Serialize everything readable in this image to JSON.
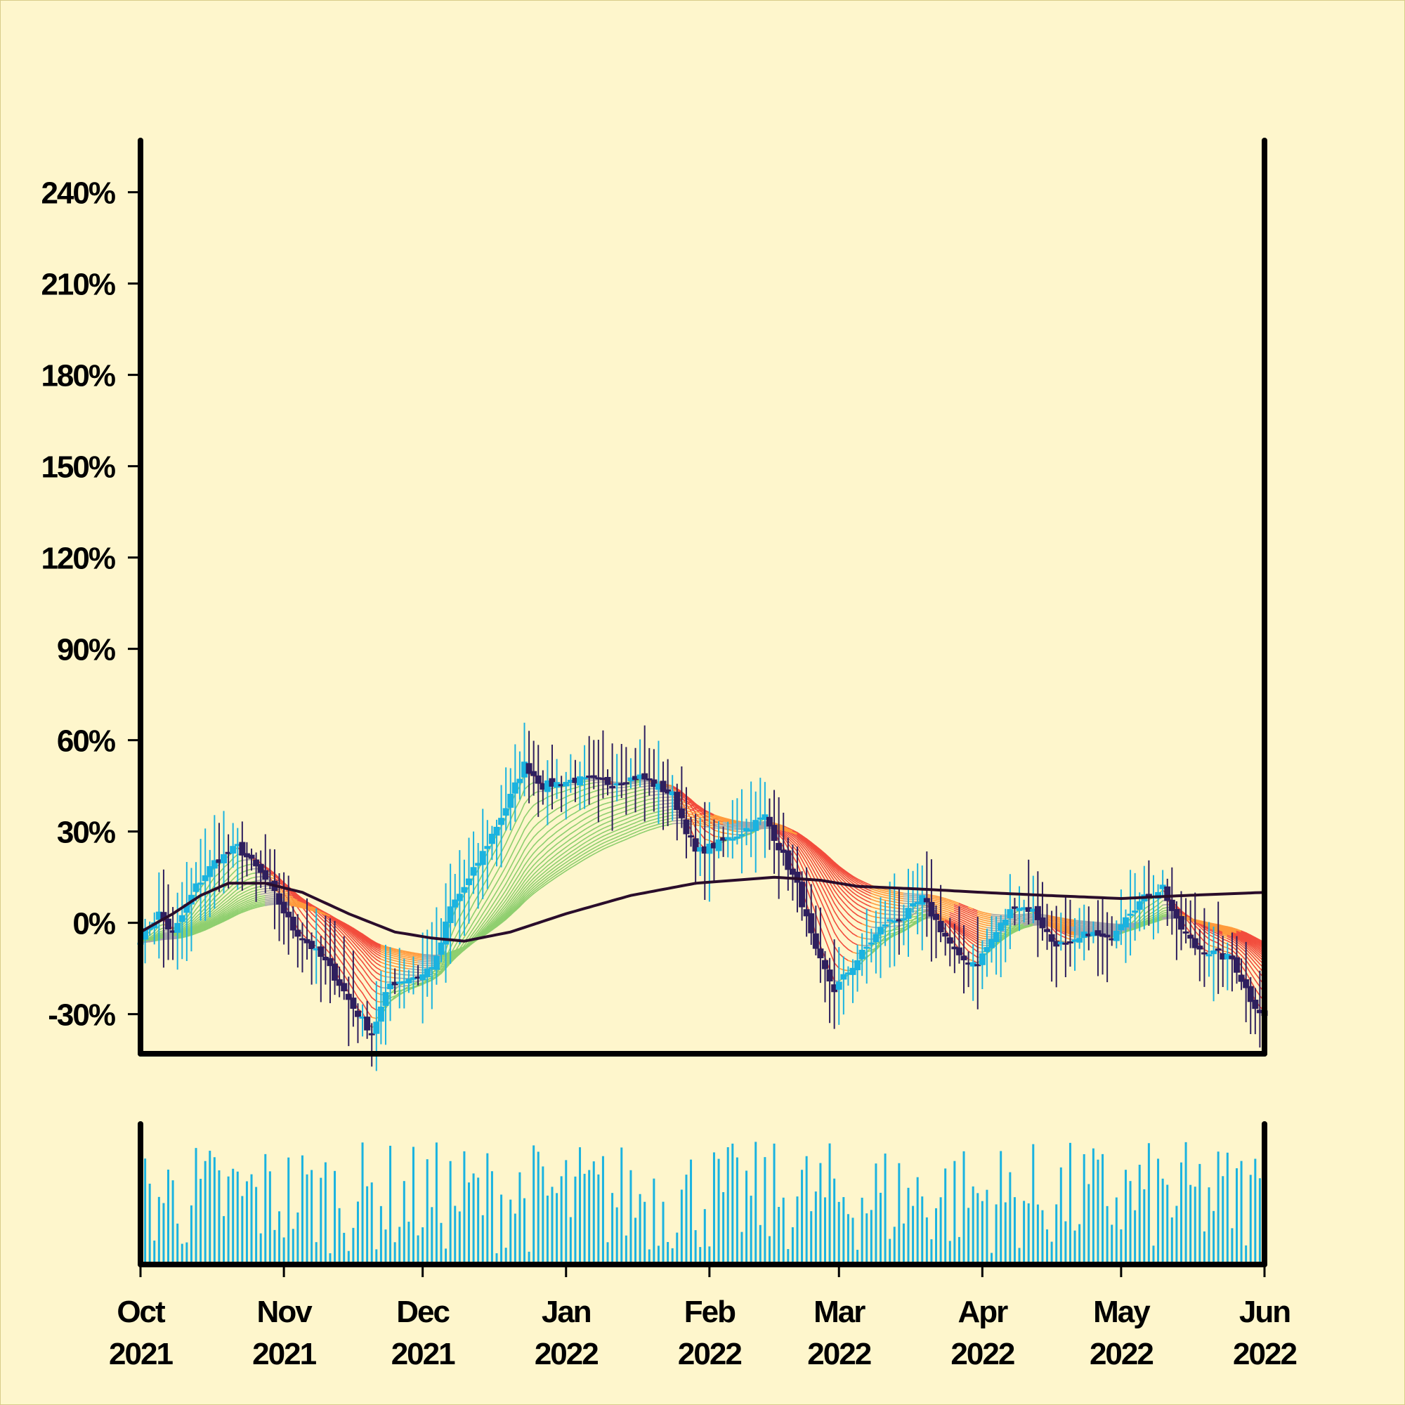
{
  "chart_data": {
    "type": "candlestick",
    "y_unit": "percent change",
    "y_axis": {
      "ticks": [
        -30,
        0,
        30,
        60,
        90,
        120,
        150,
        180,
        210,
        240
      ],
      "tick_labels": [
        "-30%",
        "0%",
        "30%",
        "60%",
        "90%",
        "120%",
        "150%",
        "180%",
        "210%",
        "240%"
      ],
      "range": [
        -43,
        257
      ]
    },
    "x_axis": {
      "range": [
        "2021-10-01",
        "2022-06-01"
      ],
      "ticks": [
        {
          "date": "2021-10-01",
          "month": "Oct",
          "year": "2021"
        },
        {
          "date": "2021-11-01",
          "month": "Nov",
          "year": "2021"
        },
        {
          "date": "2021-12-01",
          "month": "Dec",
          "year": "2021"
        },
        {
          "date": "2022-01-01",
          "month": "Jan",
          "year": "2022"
        },
        {
          "date": "2022-02-01",
          "month": "Feb",
          "year": "2022"
        },
        {
          "date": "2022-03-01",
          "month": "Mar",
          "year": "2022"
        },
        {
          "date": "2022-04-01",
          "month": "Apr",
          "year": "2022"
        },
        {
          "date": "2022-05-01",
          "month": "May",
          "year": "2022"
        },
        {
          "date": "2022-06-01",
          "month": "Jun",
          "year": "2022"
        }
      ]
    },
    "close_path": [
      [
        "2021-10-01",
        -5
      ],
      [
        "2021-10-05",
        3
      ],
      [
        "2021-10-08",
        -4
      ],
      [
        "2021-10-13",
        12
      ],
      [
        "2021-10-17",
        20
      ],
      [
        "2021-10-22",
        25
      ],
      [
        "2021-10-26",
        18
      ],
      [
        "2021-10-29",
        12
      ],
      [
        "2021-11-03",
        -2
      ],
      [
        "2021-11-07",
        -8
      ],
      [
        "2021-11-10",
        -13
      ],
      [
        "2021-11-13",
        -20
      ],
      [
        "2021-11-16",
        -28
      ],
      [
        "2021-11-20",
        -36
      ],
      [
        "2021-11-24",
        -20
      ],
      [
        "2021-11-28",
        -18
      ],
      [
        "2021-12-01",
        -17
      ],
      [
        "2021-12-04",
        -12
      ],
      [
        "2021-12-07",
        5
      ],
      [
        "2021-12-11",
        14
      ],
      [
        "2021-12-15",
        26
      ],
      [
        "2021-12-19",
        38
      ],
      [
        "2021-12-23",
        52
      ],
      [
        "2021-12-27",
        45
      ],
      [
        "2022-01-03",
        47
      ],
      [
        "2022-01-10",
        46
      ],
      [
        "2022-01-17",
        48
      ],
      [
        "2022-01-24",
        42
      ],
      [
        "2022-01-29",
        23
      ],
      [
        "2022-02-03",
        26
      ],
      [
        "2022-02-08",
        30
      ],
      [
        "2022-02-13",
        35
      ],
      [
        "2022-02-16",
        25
      ],
      [
        "2022-02-20",
        12
      ],
      [
        "2022-02-24",
        -10
      ],
      [
        "2022-02-28",
        -22
      ],
      [
        "2022-03-03",
        -16
      ],
      [
        "2022-03-07",
        -8
      ],
      [
        "2022-03-11",
        0
      ],
      [
        "2022-03-15",
        2
      ],
      [
        "2022-03-19",
        8
      ],
      [
        "2022-03-23",
        -2
      ],
      [
        "2022-03-27",
        -12
      ],
      [
        "2022-03-31",
        -13
      ],
      [
        "2022-04-04",
        -3
      ],
      [
        "2022-04-08",
        6
      ],
      [
        "2022-04-12",
        4
      ],
      [
        "2022-04-16",
        -6
      ],
      [
        "2022-04-20",
        -8
      ],
      [
        "2022-04-24",
        -3
      ],
      [
        "2022-04-28",
        -6
      ],
      [
        "2022-05-02",
        3
      ],
      [
        "2022-05-06",
        8
      ],
      [
        "2022-05-10",
        12
      ],
      [
        "2022-05-13",
        0
      ],
      [
        "2022-05-17",
        -8
      ],
      [
        "2022-05-21",
        -10
      ],
      [
        "2022-05-25",
        -12
      ],
      [
        "2022-05-29",
        -25
      ],
      [
        "2022-06-01",
        -31
      ]
    ],
    "long_moving_average": [
      [
        "2021-10-01",
        -3
      ],
      [
        "2021-10-08",
        3
      ],
      [
        "2021-10-14",
        9
      ],
      [
        "2021-10-20",
        13
      ],
      [
        "2021-10-28",
        13
      ],
      [
        "2021-11-05",
        10
      ],
      [
        "2021-11-15",
        3
      ],
      [
        "2021-11-25",
        -3
      ],
      [
        "2021-12-03",
        -5
      ],
      [
        "2021-12-10",
        -6
      ],
      [
        "2021-12-20",
        -3
      ],
      [
        "2022-01-01",
        3
      ],
      [
        "2022-01-15",
        9
      ],
      [
        "2022-01-29",
        13
      ],
      [
        "2022-02-15",
        15
      ],
      [
        "2022-02-25",
        14
      ],
      [
        "2022-03-05",
        12
      ],
      [
        "2022-03-20",
        11
      ],
      [
        "2022-04-01",
        10
      ],
      [
        "2022-04-15",
        9
      ],
      [
        "2022-05-01",
        8
      ],
      [
        "2022-05-15",
        9
      ],
      [
        "2022-06-01",
        10
      ]
    ],
    "volume_range": [
      0,
      100
    ],
    "colors": {
      "background": "#fef6cc",
      "axis": "#000000",
      "up_candle": "#1ab3e0",
      "down_candle": "#2e1f5e",
      "long_ma": "#2a0d2b",
      "ribbon_up": "#8fcf6f",
      "ribbon_down": "#f24d3d",
      "ribbon_mid": "#ff9a3c",
      "ribbon_neutral": "#a8a8a8",
      "volume": "#1ab3e0"
    },
    "grid": false,
    "legend": "none"
  }
}
